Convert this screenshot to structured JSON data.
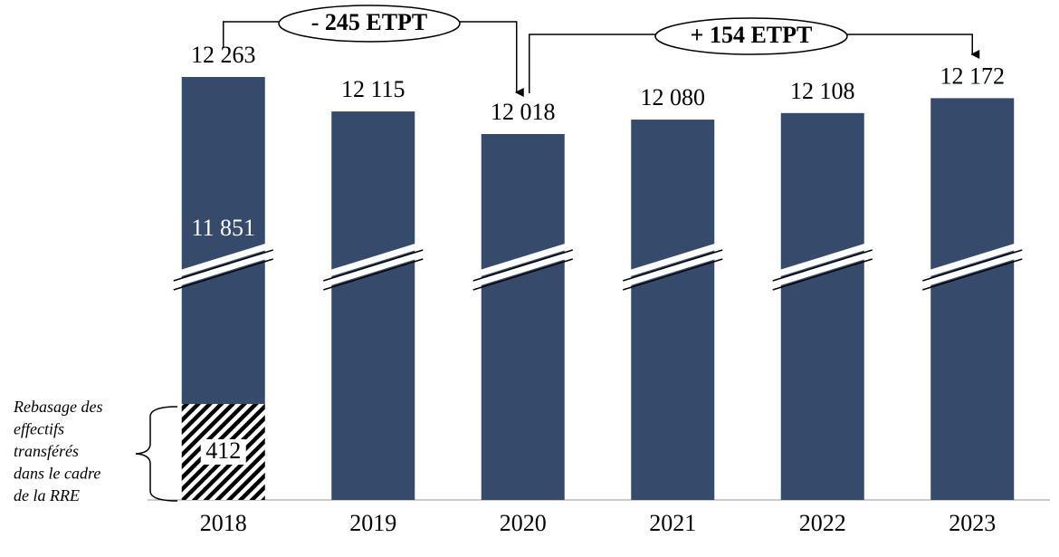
{
  "chart_data": {
    "type": "bar",
    "categories": [
      "2018",
      "2019",
      "2020",
      "2021",
      "2022",
      "2023"
    ],
    "series": [
      {
        "pattern": "hatch",
        "color": "#000000",
        "values": [
          412,
          null,
          null,
          null,
          null,
          null
        ]
      },
      {
        "color": "#364b6b",
        "values": [
          11851,
          12115,
          12018,
          12080,
          12108,
          12172
        ],
        "value_labels": [
          "11 851",
          null,
          null,
          null,
          null,
          null
        ]
      }
    ],
    "totals": {
      "values": [
        12263,
        12115,
        12018,
        12080,
        12108,
        12172
      ],
      "value_labels": [
        "12 263",
        "12 115",
        "12 018",
        "12 080",
        "12 108",
        "12 172"
      ]
    },
    "annotations": [
      {
        "text": "- 245 ETPT",
        "from": "2018",
        "to": "2020"
      },
      {
        "text": "+ 154 ETPT",
        "from": "2020",
        "to": "2023"
      }
    ],
    "brace_note": [
      "Rebasage des",
      "effectifs",
      "transférés",
      "dans le cadre",
      "de la RRE"
    ],
    "axis_break": true
  }
}
